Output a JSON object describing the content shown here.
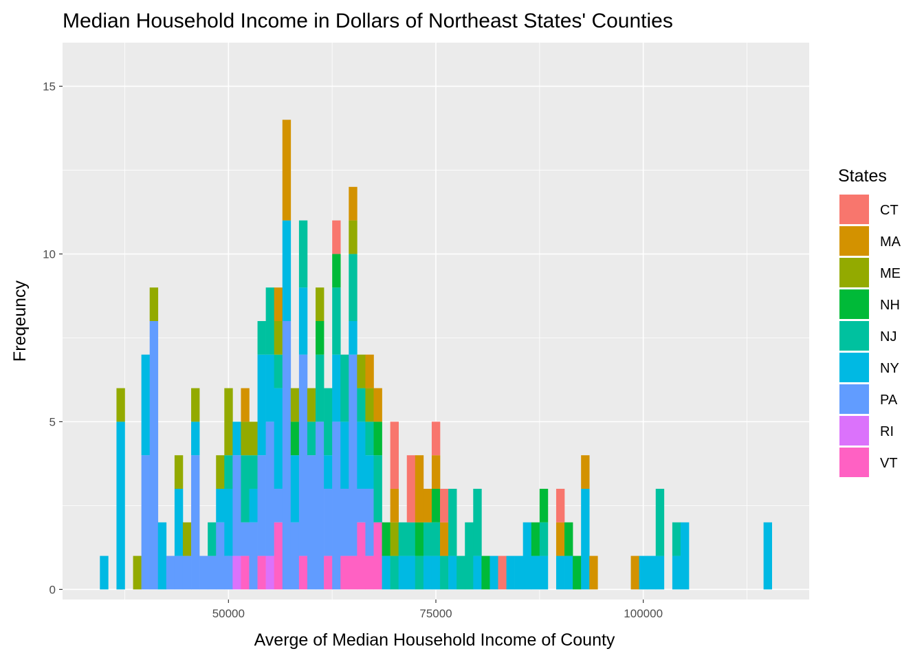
{
  "chart_data": {
    "type": "bar",
    "subtype": "stacked-histogram",
    "title": "Median Household Income in Dollars of Northeast States' Counties",
    "xlabel": "Averge of Median Household Income of County",
    "ylabel": "Freqeuncy",
    "xlim": [
      30000,
      120000
    ],
    "ylim": [
      -0.3,
      16.3
    ],
    "bin_width": 1000,
    "x_ticks": [
      50000,
      75000,
      100000
    ],
    "x_tick_labels": [
      "50000",
      "75000",
      "100000"
    ],
    "y_ticks": [
      0,
      5,
      10,
      15
    ],
    "y_tick_labels": [
      "0",
      "5",
      "10",
      "15"
    ],
    "grid": true,
    "legend_position": "right",
    "legend_title": "States",
    "stack_order": [
      "CT",
      "MA",
      "ME",
      "NH",
      "NJ",
      "NY",
      "PA",
      "RI",
      "VT"
    ],
    "series": [
      {
        "name": "CT",
        "color": "#F8766D",
        "x": [
          63000,
          70000,
          72000,
          75000,
          76000,
          83000,
          90000
        ],
        "values": [
          1,
          2,
          2,
          1,
          1,
          1,
          1
        ]
      },
      {
        "name": "MA",
        "color": "#D39200",
        "x": [
          52000,
          56000,
          57000,
          65000,
          67000,
          68000,
          70000,
          73000,
          74000,
          75000,
          76000,
          90000,
          93000,
          94000,
          99000
        ],
        "values": [
          1,
          1,
          3,
          1,
          1,
          1,
          1,
          2,
          1,
          1,
          1,
          1,
          1,
          1,
          1
        ]
      },
      {
        "name": "ME",
        "color": "#93AA00",
        "x": [
          37000,
          39000,
          41000,
          44000,
          45000,
          46000,
          49000,
          50000,
          52000,
          53000,
          56000,
          58000,
          60000,
          61000,
          65000,
          66000,
          67000,
          70000
        ],
        "values": [
          1,
          1,
          1,
          1,
          1,
          1,
          1,
          2,
          1,
          1,
          1,
          1,
          1,
          1,
          1,
          1,
          1,
          1
        ]
      },
      {
        "name": "NH",
        "color": "#00BA38",
        "x": [
          58000,
          61000,
          63000,
          68000,
          69000,
          73000,
          75000,
          81000,
          87000,
          88000,
          91000,
          92000
        ],
        "values": [
          1,
          1,
          1,
          1,
          1,
          1,
          1,
          1,
          1,
          1,
          1,
          1
        ]
      },
      {
        "name": "NJ",
        "color": "#00C19F",
        "x": [
          48000,
          50000,
          52000,
          53000,
          54000,
          55000,
          56000,
          59000,
          60000,
          61000,
          62000,
          63000,
          64000,
          65000,
          66000,
          67000,
          68000,
          70000,
          71000,
          72000,
          73000,
          74000,
          75000,
          76000,
          77000,
          78000,
          79000,
          80000,
          88000,
          102000,
          104000
        ],
        "values": [
          1,
          1,
          2,
          1,
          1,
          2,
          1,
          2,
          1,
          2,
          2,
          2,
          2,
          2,
          1,
          1,
          2,
          1,
          1,
          1,
          1,
          1,
          1,
          1,
          2,
          1,
          2,
          2,
          1,
          2,
          1
        ]
      },
      {
        "name": "NY",
        "color": "#00B9E3",
        "x": [
          35000,
          37000,
          40000,
          42000,
          44000,
          46000,
          49000,
          50000,
          51000,
          53000,
          54000,
          55000,
          56000,
          57000,
          58000,
          59000,
          62000,
          63000,
          64000,
          65000,
          66000,
          67000,
          69000,
          71000,
          72000,
          74000,
          75000,
          77000,
          80000,
          82000,
          84000,
          85000,
          86000,
          87000,
          88000,
          90000,
          91000,
          93000,
          100000,
          101000,
          102000,
          104000,
          105000,
          115000
        ],
        "values": [
          1,
          5,
          3,
          2,
          2,
          1,
          1,
          2,
          1,
          1,
          3,
          2,
          3,
          3,
          2,
          2,
          1,
          2,
          2,
          1,
          2,
          1,
          1,
          1,
          1,
          1,
          1,
          1,
          1,
          1,
          1,
          1,
          2,
          1,
          1,
          1,
          1,
          3,
          1,
          1,
          1,
          1,
          2,
          2
        ]
      },
      {
        "name": "PA",
        "color": "#619CFF",
        "x": [
          40000,
          41000,
          43000,
          44000,
          45000,
          46000,
          47000,
          48000,
          49000,
          50000,
          51000,
          52000,
          53000,
          54000,
          55000,
          56000,
          57000,
          58000,
          59000,
          60000,
          61000,
          62000,
          63000,
          64000,
          65000,
          66000,
          67000
        ],
        "values": [
          4,
          8,
          1,
          1,
          1,
          4,
          1,
          1,
          2,
          1,
          3,
          1,
          2,
          3,
          4,
          1,
          8,
          2,
          6,
          4,
          5,
          2,
          5,
          2,
          6,
          1,
          2
        ]
      },
      {
        "name": "RI",
        "color": "#DB72FB",
        "x": [
          51000,
          55000
        ],
        "values": [
          1,
          1
        ]
      },
      {
        "name": "VT",
        "color": "#FF61C3",
        "x": [
          52000,
          54000,
          56000,
          59000,
          62000,
          64000,
          65000,
          66000,
          67000,
          68000
        ],
        "values": [
          1,
          1,
          2,
          1,
          1,
          1,
          1,
          2,
          1,
          2
        ]
      }
    ]
  }
}
